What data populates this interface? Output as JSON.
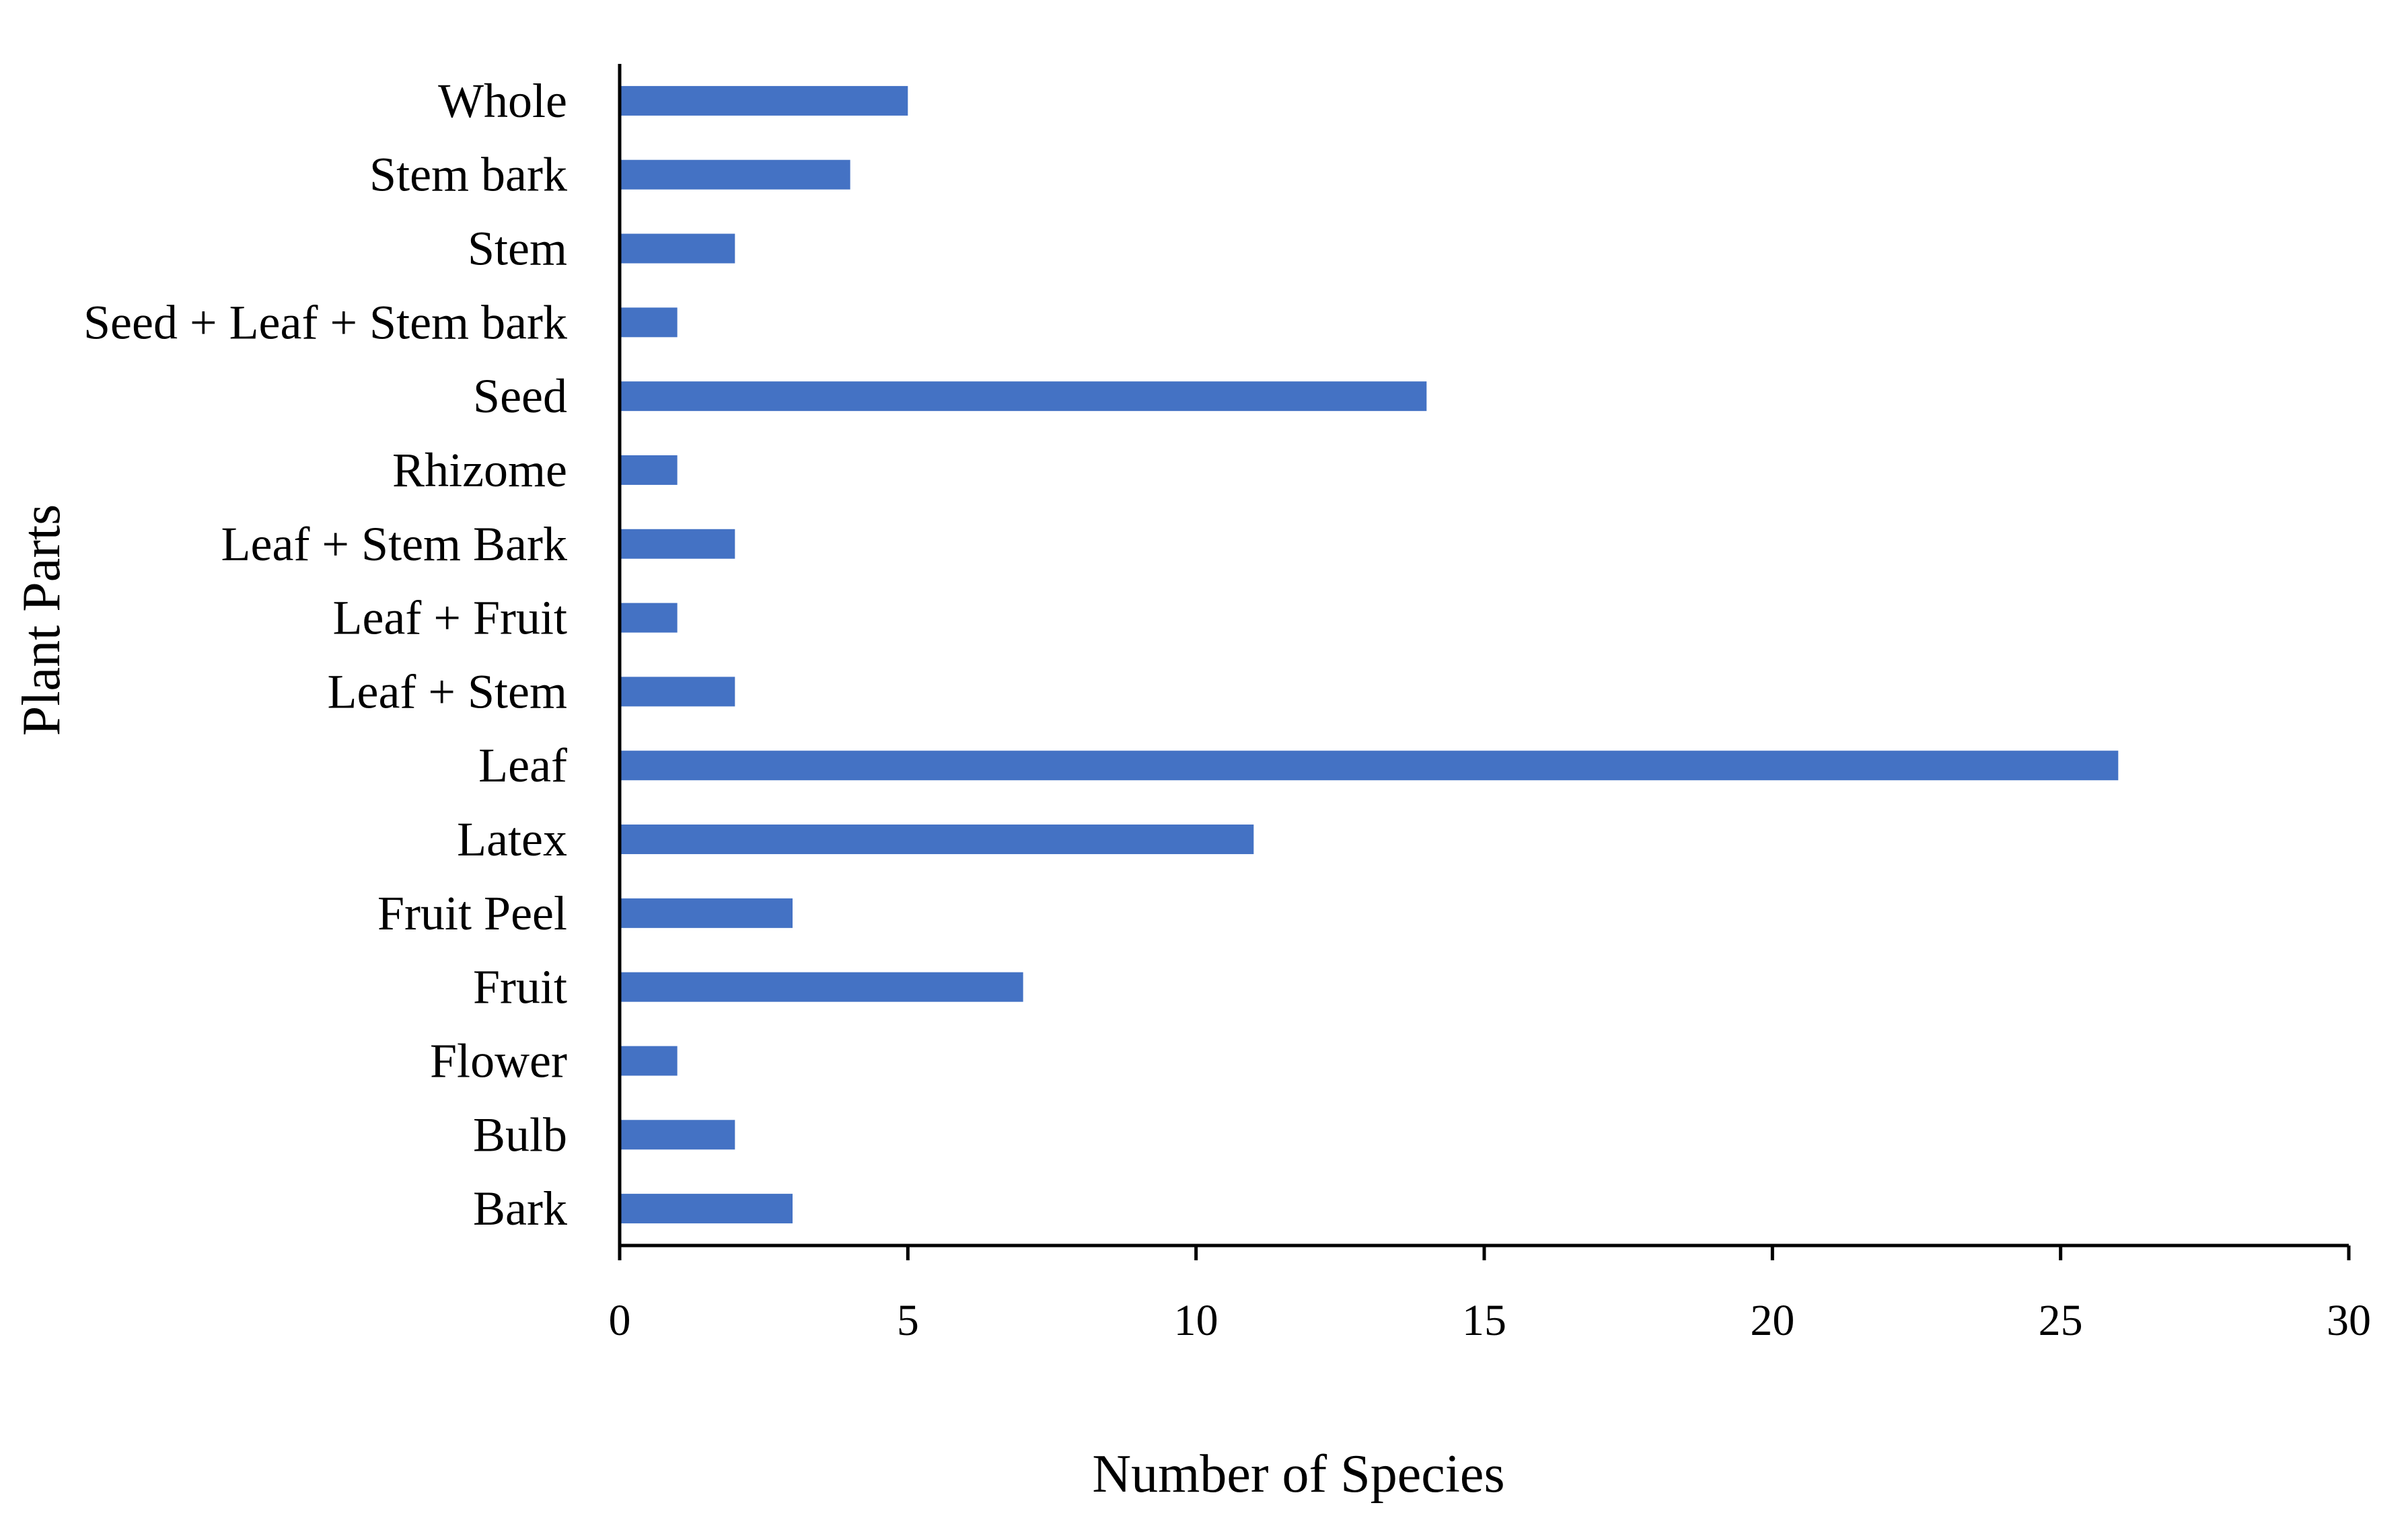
{
  "colors": {
    "bar": "#4472C4",
    "axis": "#000000",
    "text": "#000000"
  },
  "chart_data": {
    "type": "bar",
    "orientation": "horizontal",
    "title": "",
    "xlabel": "Number of Species",
    "ylabel": "Plant Parts",
    "xlim": [
      0,
      30
    ],
    "xticks": [
      0,
      5,
      10,
      15,
      20,
      25,
      30
    ],
    "grid": false,
    "legend": "none",
    "categories": [
      "Whole",
      "Stem bark",
      "Stem",
      "Seed + Leaf + Stem bark",
      "Seed",
      "Rhizome",
      "Leaf + Stem Bark",
      "Leaf + Fruit",
      "Leaf + Stem",
      "Leaf",
      "Latex",
      "Fruit Peel",
      "Fruit",
      "Flower",
      "Bulb",
      "Bark"
    ],
    "values": [
      5,
      4,
      2,
      1,
      14,
      1,
      2,
      1,
      2,
      26,
      11,
      3,
      7,
      1,
      2,
      3
    ]
  }
}
